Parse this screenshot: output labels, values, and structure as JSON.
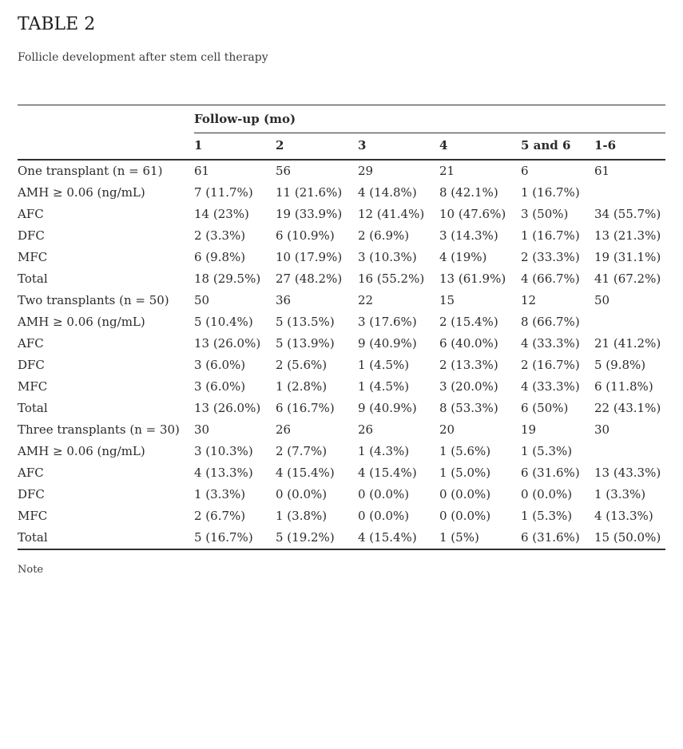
{
  "title": "TABLE 2",
  "subtitle": "Follicle development after stem cell therapy",
  "note": "Note",
  "colors": {
    "text": "#2b2b2b",
    "muted_text": "#3c3c3c",
    "border": "#2f2f2f",
    "background": "#ffffff"
  },
  "table": {
    "group_header": "Follow-up (mo)",
    "columns": [
      "1",
      "2",
      "3",
      "4",
      "5 and 6",
      "1-6"
    ],
    "sections": [
      {
        "header": {
          "label": "One transplant (n = 61)",
          "values": [
            "61",
            "56",
            "29",
            "21",
            "6",
            "61"
          ]
        },
        "rows": [
          {
            "label": "AMH ≥ 0.06 (ng/mL)",
            "indent": 1,
            "values": [
              "7 (11.7%)",
              "11 (21.6%)",
              "4 (14.8%)",
              "8 (42.1%)",
              "1 (16.7%)",
              ""
            ]
          },
          {
            "label": "AFC",
            "indent": 2,
            "values": [
              "14 (23%)",
              "19 (33.9%)",
              "12 (41.4%)",
              "10 (47.6%)",
              "3 (50%)",
              "34 (55.7%)"
            ]
          },
          {
            "label": "DFC",
            "indent": 2,
            "values": [
              "2 (3.3%)",
              "6 (10.9%)",
              "2 (6.9%)",
              "3 (14.3%)",
              "1 (16.7%)",
              "13 (21.3%)"
            ]
          },
          {
            "label": "MFC",
            "indent": 2,
            "values": [
              "6 (9.8%)",
              "10 (17.9%)",
              "3 (10.3%)",
              "4 (19%)",
              "2 (33.3%)",
              "19 (31.1%)"
            ]
          },
          {
            "label": "Total",
            "indent": 2,
            "values": [
              "18 (29.5%)",
              "27 (48.2%)",
              "16 (55.2%)",
              "13 (61.9%)",
              "4 (66.7%)",
              "41 (67.2%)"
            ]
          }
        ]
      },
      {
        "header": {
          "label": "Two transplants (n = 50)",
          "values": [
            "50",
            "36",
            "22",
            "15",
            "12",
            "50"
          ]
        },
        "rows": [
          {
            "label": "AMH ≥ 0.06 (ng/mL)",
            "indent": 1,
            "values": [
              "5 (10.4%)",
              "5 (13.5%)",
              "3 (17.6%)",
              "2 (15.4%)",
              "8 (66.7%)",
              ""
            ]
          },
          {
            "label": "AFC",
            "indent": 2,
            "values": [
              "13 (26.0%)",
              "5 (13.9%)",
              "9 (40.9%)",
              "6 (40.0%)",
              "4 (33.3%)",
              "21 (41.2%)"
            ]
          },
          {
            "label": "DFC",
            "indent": 2,
            "values": [
              "3 (6.0%)",
              "2 (5.6%)",
              "1 (4.5%)",
              "2 (13.3%)",
              "2 (16.7%)",
              "5 (9.8%)"
            ]
          },
          {
            "label": "MFC",
            "indent": 2,
            "values": [
              "3 (6.0%)",
              "1 (2.8%)",
              "1 (4.5%)",
              "3 (20.0%)",
              "4 (33.3%)",
              "6 (11.8%)"
            ]
          },
          {
            "label": "Total",
            "indent": 2,
            "values": [
              "13 (26.0%)",
              "6 (16.7%)",
              "9 (40.9%)",
              "8 (53.3%)",
              "6 (50%)",
              "22 (43.1%)"
            ]
          }
        ]
      },
      {
        "header": {
          "label": "Three transplants (n = 30)",
          "values": [
            "30",
            "26",
            "26",
            "20",
            "19",
            "30"
          ]
        },
        "rows": [
          {
            "label": "AMH ≥ 0.06 (ng/mL)",
            "indent": 1,
            "values": [
              "3 (10.3%)",
              "2 (7.7%)",
              "1 (4.3%)",
              "1 (5.6%)",
              "1 (5.3%)",
              ""
            ]
          },
          {
            "label": "AFC",
            "indent": 2,
            "values": [
              "4 (13.3%)",
              "4 (15.4%)",
              "4 (15.4%)",
              "1 (5.0%)",
              "6 (31.6%)",
              "13 (43.3%)"
            ]
          },
          {
            "label": "DFC",
            "indent": 2,
            "values": [
              "1 (3.3%)",
              "0 (0.0%)",
              "0 (0.0%)",
              "0 (0.0%)",
              "0 (0.0%)",
              "1 (3.3%)"
            ]
          },
          {
            "label": "MFC",
            "indent": 2,
            "values": [
              "2 (6.7%)",
              "1 (3.8%)",
              "0 (0.0%)",
              "0 (0.0%)",
              "1 (5.3%)",
              "4 (13.3%)"
            ]
          },
          {
            "label": "Total",
            "indent": 2,
            "values": [
              "5 (16.7%)",
              "5 (19.2%)",
              "4 (15.4%)",
              "1 (5%)",
              "6 (31.6%)",
              "15 (50.0%)"
            ]
          }
        ]
      }
    ]
  }
}
